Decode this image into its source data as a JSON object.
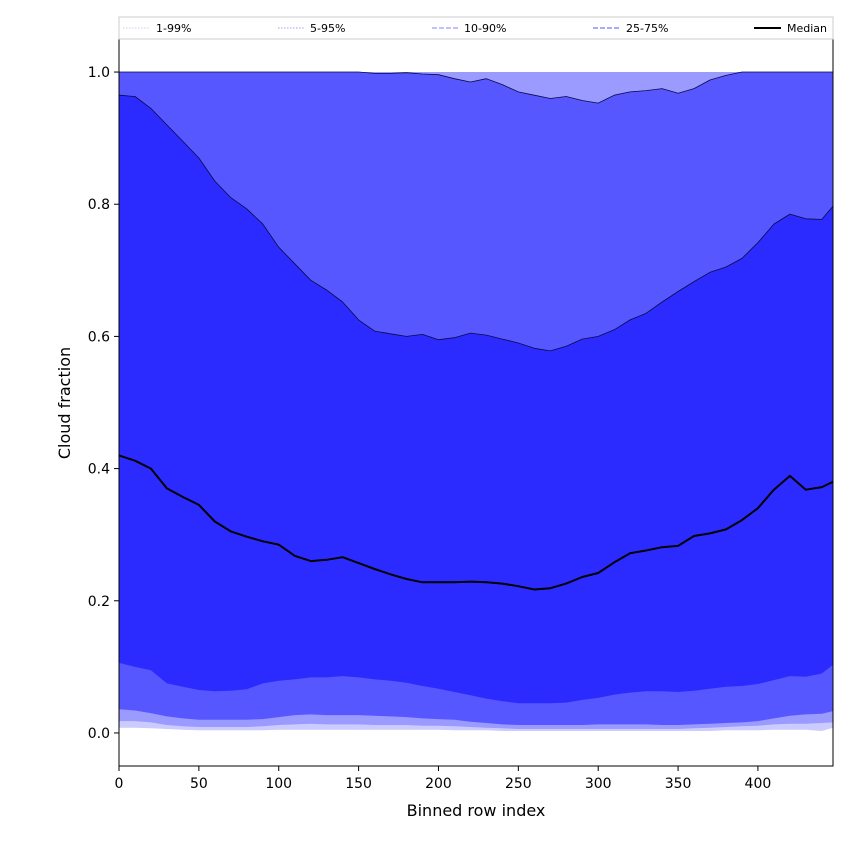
{
  "chart_data": {
    "type": "area",
    "title": "",
    "xlabel": "Binned row index",
    "ylabel": "Cloud fraction",
    "xlim": [
      0,
      447
    ],
    "ylim": [
      -0.05,
      1.05
    ],
    "xticks": [
      "0",
      "50",
      "100",
      "150",
      "200",
      "250",
      "300",
      "350",
      "400"
    ],
    "yticks": [
      "0.0",
      "0.2",
      "0.4",
      "0.6",
      "0.8",
      "1.0"
    ],
    "grid": false,
    "legend_position": "top",
    "legend": [
      {
        "label": "1-99%",
        "color": "#cfcfff",
        "style": "dotted"
      },
      {
        "label": "5-95%",
        "color": "#9c9cff",
        "style": "dotted"
      },
      {
        "label": "10-90%",
        "color": "#8585ff",
        "style": "dashed"
      },
      {
        "label": "25-75%",
        "color": "#5555ff",
        "style": "dashed"
      },
      {
        "label": "Median",
        "color": "#000000",
        "style": "solid"
      }
    ],
    "colors": {
      "band_1_99": "#cbcbff",
      "band_5_95": "#9a9aff",
      "band_10_90": "#5757ff",
      "band_25_75": "#2b2bff",
      "median": "#000000"
    },
    "x": [
      0,
      10,
      20,
      30,
      40,
      50,
      60,
      70,
      80,
      90,
      100,
      110,
      120,
      130,
      140,
      150,
      160,
      170,
      180,
      190,
      200,
      210,
      220,
      230,
      240,
      250,
      260,
      270,
      280,
      290,
      300,
      310,
      320,
      330,
      340,
      350,
      360,
      370,
      380,
      390,
      400,
      410,
      420,
      430,
      440,
      447
    ],
    "series": [
      {
        "name": "1-99%",
        "role": "lower",
        "values": [
          0.008,
          0.008,
          0.007,
          0.006,
          0.005,
          0.004,
          0.004,
          0.004,
          0.004,
          0.004,
          0.005,
          0.005,
          0.005,
          0.005,
          0.005,
          0.005,
          0.005,
          0.005,
          0.005,
          0.005,
          0.005,
          0.004,
          0.004,
          0.004,
          0.003,
          0.003,
          0.003,
          0.003,
          0.003,
          0.003,
          0.003,
          0.003,
          0.003,
          0.003,
          0.003,
          0.003,
          0.003,
          0.003,
          0.004,
          0.004,
          0.004,
          0.005,
          0.005,
          0.005,
          0.003,
          0.008
        ]
      },
      {
        "name": "5-95%",
        "role": "lower",
        "values": [
          0.018,
          0.018,
          0.016,
          0.012,
          0.01,
          0.009,
          0.009,
          0.009,
          0.009,
          0.01,
          0.012,
          0.013,
          0.014,
          0.013,
          0.013,
          0.013,
          0.012,
          0.012,
          0.012,
          0.011,
          0.011,
          0.01,
          0.009,
          0.008,
          0.007,
          0.006,
          0.006,
          0.006,
          0.006,
          0.006,
          0.006,
          0.006,
          0.006,
          0.006,
          0.006,
          0.006,
          0.007,
          0.008,
          0.009,
          0.01,
          0.011,
          0.013,
          0.014,
          0.014,
          0.015,
          0.016
        ]
      },
      {
        "name": "10-90%",
        "role": "lower",
        "values": [
          0.036,
          0.034,
          0.03,
          0.025,
          0.022,
          0.02,
          0.02,
          0.02,
          0.02,
          0.021,
          0.024,
          0.027,
          0.028,
          0.027,
          0.027,
          0.027,
          0.026,
          0.025,
          0.024,
          0.022,
          0.021,
          0.02,
          0.017,
          0.015,
          0.013,
          0.012,
          0.012,
          0.012,
          0.012,
          0.012,
          0.013,
          0.013,
          0.013,
          0.013,
          0.012,
          0.012,
          0.013,
          0.014,
          0.015,
          0.016,
          0.018,
          0.022,
          0.026,
          0.028,
          0.029,
          0.033
        ]
      },
      {
        "name": "25-75%",
        "role": "lower",
        "values": [
          0.106,
          0.1,
          0.095,
          0.075,
          0.07,
          0.065,
          0.063,
          0.064,
          0.066,
          0.075,
          0.079,
          0.081,
          0.084,
          0.084,
          0.086,
          0.084,
          0.081,
          0.079,
          0.076,
          0.071,
          0.067,
          0.062,
          0.057,
          0.052,
          0.048,
          0.045,
          0.045,
          0.045,
          0.046,
          0.05,
          0.053,
          0.058,
          0.061,
          0.063,
          0.063,
          0.062,
          0.064,
          0.067,
          0.07,
          0.071,
          0.074,
          0.08,
          0.086,
          0.085,
          0.09,
          0.103
        ]
      },
      {
        "name": "Median",
        "role": "median",
        "values": [
          0.42,
          0.412,
          0.4,
          0.37,
          0.357,
          0.345,
          0.32,
          0.305,
          0.297,
          0.29,
          0.285,
          0.268,
          0.26,
          0.262,
          0.266,
          0.257,
          0.248,
          0.24,
          0.233,
          0.228,
          0.228,
          0.228,
          0.229,
          0.228,
          0.226,
          0.222,
          0.217,
          0.219,
          0.226,
          0.236,
          0.242,
          0.258,
          0.272,
          0.276,
          0.281,
          0.283,
          0.298,
          0.302,
          0.308,
          0.322,
          0.34,
          0.368,
          0.389,
          0.368,
          0.372,
          0.38
        ]
      },
      {
        "name": "25-75%",
        "role": "upper",
        "values": [
          0.965,
          0.963,
          0.945,
          0.92,
          0.895,
          0.87,
          0.835,
          0.81,
          0.793,
          0.77,
          0.735,
          0.71,
          0.685,
          0.67,
          0.652,
          0.625,
          0.608,
          0.604,
          0.6,
          0.603,
          0.595,
          0.598,
          0.605,
          0.602,
          0.596,
          0.59,
          0.582,
          0.578,
          0.585,
          0.596,
          0.6,
          0.61,
          0.625,
          0.635,
          0.652,
          0.668,
          0.683,
          0.697,
          0.705,
          0.718,
          0.742,
          0.77,
          0.785,
          0.778,
          0.777,
          0.797
        ]
      },
      {
        "name": "10-90%",
        "role": "upper",
        "values": [
          1.0,
          1.0,
          1.0,
          1.0,
          1.0,
          1.0,
          1.0,
          1.0,
          1.0,
          1.0,
          1.0,
          1.0,
          1.0,
          1.0,
          1.0,
          1.0,
          0.998,
          0.998,
          0.999,
          0.997,
          0.996,
          0.99,
          0.985,
          0.99,
          0.981,
          0.97,
          0.965,
          0.96,
          0.963,
          0.957,
          0.953,
          0.965,
          0.97,
          0.972,
          0.975,
          0.968,
          0.975,
          0.988,
          0.995,
          1.0,
          1.0,
          1.0,
          1.0,
          1.0,
          1.0,
          1.0
        ]
      },
      {
        "name": "5-95%",
        "role": "upper",
        "values": [
          1.0,
          1.0,
          1.0,
          1.0,
          1.0,
          1.0,
          1.0,
          1.0,
          1.0,
          1.0,
          1.0,
          1.0,
          1.0,
          1.0,
          1.0,
          1.0,
          1.0,
          1.0,
          1.0,
          1.0,
          1.0,
          1.0,
          1.0,
          1.0,
          1.0,
          1.0,
          1.0,
          1.0,
          1.0,
          1.0,
          1.0,
          1.0,
          1.0,
          1.0,
          1.0,
          1.0,
          1.0,
          1.0,
          1.0,
          1.0,
          1.0,
          1.0,
          1.0,
          1.0,
          1.0,
          1.0
        ]
      },
      {
        "name": "1-99%",
        "role": "upper",
        "values": [
          1.0,
          1.0,
          1.0,
          1.0,
          1.0,
          1.0,
          1.0,
          1.0,
          1.0,
          1.0,
          1.0,
          1.0,
          1.0,
          1.0,
          1.0,
          1.0,
          1.0,
          1.0,
          1.0,
          1.0,
          1.0,
          1.0,
          1.0,
          1.0,
          1.0,
          1.0,
          1.0,
          1.0,
          1.0,
          1.0,
          1.0,
          1.0,
          1.0,
          1.0,
          1.0,
          1.0,
          1.0,
          1.0,
          1.0,
          1.0,
          1.0,
          1.0,
          1.0,
          1.0,
          1.0,
          1.0
        ]
      }
    ]
  }
}
